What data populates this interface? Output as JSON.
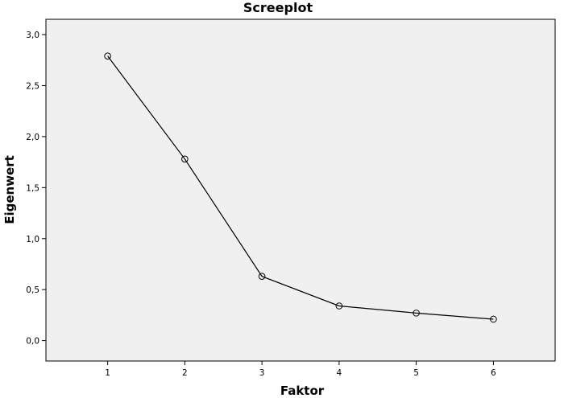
{
  "chart_data": {
    "type": "line",
    "title": "Screeplot",
    "xlabel": "Faktor",
    "ylabel": "Eigenwert",
    "x": [
      1,
      2,
      3,
      4,
      5,
      6
    ],
    "series": [
      {
        "values": [
          2.79,
          1.78,
          0.63,
          0.34,
          0.27,
          0.21
        ]
      }
    ],
    "xticks": [
      "1",
      "2",
      "3",
      "4",
      "5",
      "6"
    ],
    "yticks": [
      {
        "value": 0.0,
        "label": "0,0"
      },
      {
        "value": 0.5,
        "label": "0,5"
      },
      {
        "value": 1.0,
        "label": "1,0"
      },
      {
        "value": 1.5,
        "label": "1,5"
      },
      {
        "value": 2.0,
        "label": "2,0"
      },
      {
        "value": 2.5,
        "label": "2,5"
      },
      {
        "value": 3.0,
        "label": "3,0"
      }
    ],
    "xlim": [
      0.2,
      6.8
    ],
    "ylim": [
      -0.2,
      3.15
    ],
    "grid": false,
    "marker": "open-circle",
    "plot_background": "#f0f0f0",
    "line_color": "#000000"
  }
}
